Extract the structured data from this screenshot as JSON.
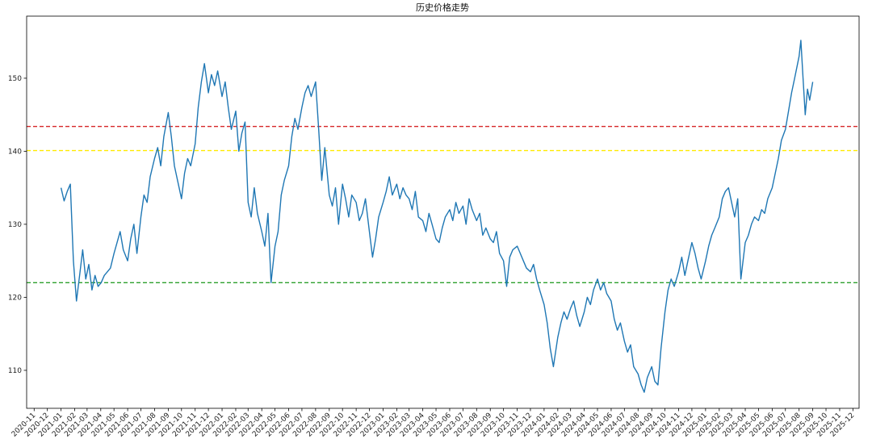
{
  "chart_data": {
    "type": "line",
    "title": "历史价格走势",
    "xlabel": "",
    "ylabel": "",
    "xlim": [
      "2020-10-15",
      "2025-12-15"
    ],
    "ylim": [
      104.8,
      158.5
    ],
    "grid": false,
    "legend": "none",
    "y_ticks": [
      110,
      120,
      130,
      140,
      150
    ],
    "x_ticks": [
      "2020-11",
      "2020-12",
      "2021-01",
      "2021-02",
      "2021-03",
      "2021-04",
      "2021-05",
      "2021-06",
      "2021-07",
      "2021-08",
      "2021-09",
      "2021-10",
      "2021-11",
      "2021-12",
      "2022-01",
      "2022-02",
      "2022-03",
      "2022-04",
      "2022-05",
      "2022-06",
      "2022-07",
      "2022-08",
      "2022-09",
      "2022-10",
      "2022-11",
      "2022-12",
      "2023-01",
      "2023-02",
      "2023-03",
      "2023-04",
      "2023-05",
      "2023-06",
      "2023-07",
      "2023-08",
      "2023-09",
      "2023-10",
      "2023-11",
      "2023-12",
      "2024-01",
      "2024-02",
      "2024-03",
      "2024-04",
      "2024-05",
      "2024-06",
      "2024-07",
      "2024-08",
      "2024-09",
      "2024-10",
      "2024-11",
      "2024-12",
      "2025-01",
      "2025-02",
      "2025-03",
      "2025-04",
      "2025-05",
      "2025-06",
      "2025-07",
      "2025-08",
      "2025-09",
      "2025-10",
      "2025-11",
      "2025-12"
    ],
    "hlines": [
      {
        "y": 143.4,
        "color": "#d62728",
        "style": "dashed"
      },
      {
        "y": 140.1,
        "color": "#ffea00",
        "style": "dashed"
      },
      {
        "y": 122.0,
        "color": "#2ca02c",
        "style": "dashed"
      }
    ],
    "series": [
      {
        "color": "#1f77b4",
        "points": [
          [
            "2021-01-01",
            135.0
          ],
          [
            "2021-01-08",
            133.2
          ],
          [
            "2021-01-15",
            134.5
          ],
          [
            "2021-01-22",
            135.5
          ],
          [
            "2021-01-29",
            125.0
          ],
          [
            "2021-02-05",
            119.5
          ],
          [
            "2021-02-12",
            123.0
          ],
          [
            "2021-02-19",
            126.5
          ],
          [
            "2021-02-26",
            122.5
          ],
          [
            "2021-03-05",
            124.5
          ],
          [
            "2021-03-12",
            121.0
          ],
          [
            "2021-03-19",
            123.0
          ],
          [
            "2021-03-26",
            121.5
          ],
          [
            "2021-04-02",
            122.0
          ],
          [
            "2021-04-09",
            123.0
          ],
          [
            "2021-04-16",
            123.5
          ],
          [
            "2021-04-23",
            124.0
          ],
          [
            "2021-05-01",
            126.0
          ],
          [
            "2021-05-08",
            127.5
          ],
          [
            "2021-05-15",
            129.0
          ],
          [
            "2021-05-22",
            126.5
          ],
          [
            "2021-06-01",
            125.0
          ],
          [
            "2021-06-08",
            128.0
          ],
          [
            "2021-06-15",
            130.0
          ],
          [
            "2021-06-22",
            126.0
          ],
          [
            "2021-07-01",
            131.0
          ],
          [
            "2021-07-08",
            134.0
          ],
          [
            "2021-07-15",
            133.0
          ],
          [
            "2021-07-22",
            136.5
          ],
          [
            "2021-08-01",
            139.0
          ],
          [
            "2021-08-08",
            140.5
          ],
          [
            "2021-08-15",
            138.0
          ],
          [
            "2021-08-22",
            142.0
          ],
          [
            "2021-09-01",
            145.3
          ],
          [
            "2021-09-08",
            142.0
          ],
          [
            "2021-09-15",
            138.0
          ],
          [
            "2021-09-22",
            136.0
          ],
          [
            "2021-10-01",
            133.5
          ],
          [
            "2021-10-08",
            137.0
          ],
          [
            "2021-10-15",
            139.0
          ],
          [
            "2021-10-22",
            138.0
          ],
          [
            "2021-11-01",
            141.0
          ],
          [
            "2021-11-08",
            146.0
          ],
          [
            "2021-11-15",
            149.5
          ],
          [
            "2021-11-22",
            152.0
          ],
          [
            "2021-12-01",
            148.0
          ],
          [
            "2021-12-08",
            150.5
          ],
          [
            "2021-12-15",
            149.0
          ],
          [
            "2021-12-22",
            151.0
          ],
          [
            "2022-01-01",
            147.5
          ],
          [
            "2022-01-08",
            149.5
          ],
          [
            "2022-01-15",
            146.0
          ],
          [
            "2022-01-22",
            143.0
          ],
          [
            "2022-02-01",
            145.5
          ],
          [
            "2022-02-08",
            140.0
          ],
          [
            "2022-02-15",
            142.5
          ],
          [
            "2022-02-22",
            144.0
          ],
          [
            "2022-03-01",
            133.0
          ],
          [
            "2022-03-08",
            131.0
          ],
          [
            "2022-03-15",
            135.0
          ],
          [
            "2022-03-22",
            131.5
          ],
          [
            "2022-04-01",
            129.0
          ],
          [
            "2022-04-08",
            127.0
          ],
          [
            "2022-04-15",
            131.5
          ],
          [
            "2022-04-22",
            122.0
          ],
          [
            "2022-05-01",
            127.0
          ],
          [
            "2022-05-08",
            129.0
          ],
          [
            "2022-05-15",
            134.0
          ],
          [
            "2022-05-22",
            136.0
          ],
          [
            "2022-06-01",
            138.0
          ],
          [
            "2022-06-08",
            142.0
          ],
          [
            "2022-06-15",
            144.5
          ],
          [
            "2022-06-22",
            143.0
          ],
          [
            "2022-07-01",
            146.0
          ],
          [
            "2022-07-08",
            148.0
          ],
          [
            "2022-07-15",
            149.0
          ],
          [
            "2022-07-22",
            147.5
          ],
          [
            "2022-08-01",
            149.5
          ],
          [
            "2022-08-08",
            143.0
          ],
          [
            "2022-08-15",
            136.0
          ],
          [
            "2022-08-22",
            140.5
          ],
          [
            "2022-09-01",
            134.0
          ],
          [
            "2022-09-08",
            132.5
          ],
          [
            "2022-09-15",
            135.0
          ],
          [
            "2022-09-22",
            130.0
          ],
          [
            "2022-10-01",
            135.5
          ],
          [
            "2022-10-08",
            133.5
          ],
          [
            "2022-10-15",
            131.0
          ],
          [
            "2022-10-22",
            134.0
          ],
          [
            "2022-11-01",
            133.0
          ],
          [
            "2022-11-08",
            130.5
          ],
          [
            "2022-11-15",
            131.5
          ],
          [
            "2022-11-22",
            133.5
          ],
          [
            "2022-12-01",
            129.0
          ],
          [
            "2022-12-08",
            125.5
          ],
          [
            "2022-12-15",
            128.0
          ],
          [
            "2022-12-22",
            131.0
          ],
          [
            "2023-01-01",
            133.0
          ],
          [
            "2023-01-08",
            134.5
          ],
          [
            "2023-01-15",
            136.5
          ],
          [
            "2023-01-22",
            134.0
          ],
          [
            "2023-02-01",
            135.5
          ],
          [
            "2023-02-08",
            133.5
          ],
          [
            "2023-02-15",
            135.0
          ],
          [
            "2023-02-22",
            134.0
          ],
          [
            "2023-03-01",
            133.5
          ],
          [
            "2023-03-08",
            132.0
          ],
          [
            "2023-03-15",
            134.5
          ],
          [
            "2023-03-22",
            131.0
          ],
          [
            "2023-04-01",
            130.5
          ],
          [
            "2023-04-08",
            129.0
          ],
          [
            "2023-04-15",
            131.5
          ],
          [
            "2023-04-22",
            130.0
          ],
          [
            "2023-05-01",
            128.0
          ],
          [
            "2023-05-08",
            127.5
          ],
          [
            "2023-05-15",
            129.5
          ],
          [
            "2023-05-22",
            131.0
          ],
          [
            "2023-06-01",
            132.0
          ],
          [
            "2023-06-08",
            130.5
          ],
          [
            "2023-06-15",
            133.0
          ],
          [
            "2023-06-22",
            131.5
          ],
          [
            "2023-07-01",
            132.5
          ],
          [
            "2023-07-08",
            130.0
          ],
          [
            "2023-07-15",
            133.5
          ],
          [
            "2023-07-22",
            132.0
          ],
          [
            "2023-08-01",
            130.5
          ],
          [
            "2023-08-08",
            131.5
          ],
          [
            "2023-08-15",
            128.5
          ],
          [
            "2023-08-22",
            129.5
          ],
          [
            "2023-09-01",
            128.0
          ],
          [
            "2023-09-08",
            127.5
          ],
          [
            "2023-09-15",
            129.0
          ],
          [
            "2023-09-22",
            126.0
          ],
          [
            "2023-10-01",
            125.0
          ],
          [
            "2023-10-08",
            121.5
          ],
          [
            "2023-10-15",
            125.5
          ],
          [
            "2023-10-22",
            126.5
          ],
          [
            "2023-11-01",
            127.0
          ],
          [
            "2023-11-08",
            126.0
          ],
          [
            "2023-11-15",
            125.0
          ],
          [
            "2023-11-22",
            124.0
          ],
          [
            "2023-12-01",
            123.5
          ],
          [
            "2023-12-08",
            124.5
          ],
          [
            "2023-12-15",
            122.5
          ],
          [
            "2023-12-22",
            121.0
          ],
          [
            "2024-01-01",
            119.0
          ],
          [
            "2024-01-08",
            116.5
          ],
          [
            "2024-01-15",
            113.0
          ],
          [
            "2024-01-22",
            110.5
          ],
          [
            "2024-02-01",
            114.5
          ],
          [
            "2024-02-08",
            116.5
          ],
          [
            "2024-02-15",
            118.0
          ],
          [
            "2024-02-22",
            117.0
          ],
          [
            "2024-03-01",
            118.5
          ],
          [
            "2024-03-08",
            119.5
          ],
          [
            "2024-03-15",
            117.5
          ],
          [
            "2024-03-22",
            116.0
          ],
          [
            "2024-04-01",
            118.0
          ],
          [
            "2024-04-08",
            120.0
          ],
          [
            "2024-04-15",
            119.0
          ],
          [
            "2024-04-22",
            121.0
          ],
          [
            "2024-05-01",
            122.5
          ],
          [
            "2024-05-08",
            121.0
          ],
          [
            "2024-05-15",
            122.0
          ],
          [
            "2024-05-22",
            120.5
          ],
          [
            "2024-06-01",
            119.5
          ],
          [
            "2024-06-08",
            117.0
          ],
          [
            "2024-06-15",
            115.5
          ],
          [
            "2024-06-22",
            116.5
          ],
          [
            "2024-07-01",
            114.0
          ],
          [
            "2024-07-08",
            112.5
          ],
          [
            "2024-07-15",
            113.5
          ],
          [
            "2024-07-22",
            110.5
          ],
          [
            "2024-08-01",
            109.5
          ],
          [
            "2024-08-08",
            108.0
          ],
          [
            "2024-08-15",
            107.0
          ],
          [
            "2024-08-22",
            109.0
          ],
          [
            "2024-09-01",
            110.5
          ],
          [
            "2024-09-08",
            108.5
          ],
          [
            "2024-09-15",
            108.0
          ],
          [
            "2024-09-22",
            113.0
          ],
          [
            "2024-10-01",
            118.0
          ],
          [
            "2024-10-08",
            121.0
          ],
          [
            "2024-10-15",
            122.5
          ],
          [
            "2024-10-22",
            121.5
          ],
          [
            "2024-11-01",
            123.5
          ],
          [
            "2024-11-08",
            125.5
          ],
          [
            "2024-11-15",
            123.0
          ],
          [
            "2024-11-22",
            125.0
          ],
          [
            "2024-12-01",
            127.5
          ],
          [
            "2024-12-08",
            126.0
          ],
          [
            "2024-12-15",
            124.0
          ],
          [
            "2024-12-22",
            122.5
          ],
          [
            "2025-01-01",
            125.0
          ],
          [
            "2025-01-08",
            127.0
          ],
          [
            "2025-01-15",
            128.5
          ],
          [
            "2025-01-22",
            129.5
          ],
          [
            "2025-02-01",
            131.0
          ],
          [
            "2025-02-08",
            133.5
          ],
          [
            "2025-02-15",
            134.5
          ],
          [
            "2025-02-22",
            135.0
          ],
          [
            "2025-03-01",
            133.0
          ],
          [
            "2025-03-08",
            131.0
          ],
          [
            "2025-03-15",
            133.5
          ],
          [
            "2025-03-22",
            122.5
          ],
          [
            "2025-04-01",
            127.5
          ],
          [
            "2025-04-08",
            128.5
          ],
          [
            "2025-04-15",
            130.0
          ],
          [
            "2025-04-22",
            131.0
          ],
          [
            "2025-05-01",
            130.5
          ],
          [
            "2025-05-08",
            132.0
          ],
          [
            "2025-05-15",
            131.5
          ],
          [
            "2025-05-22",
            133.5
          ],
          [
            "2025-06-01",
            135.0
          ],
          [
            "2025-06-08",
            137.0
          ],
          [
            "2025-06-15",
            139.0
          ],
          [
            "2025-06-22",
            141.5
          ],
          [
            "2025-07-01",
            143.0
          ],
          [
            "2025-07-08",
            145.5
          ],
          [
            "2025-07-15",
            148.0
          ],
          [
            "2025-07-22",
            150.0
          ],
          [
            "2025-08-01",
            153.0
          ],
          [
            "2025-08-05",
            155.2
          ],
          [
            "2025-08-10",
            150.0
          ],
          [
            "2025-08-15",
            145.0
          ],
          [
            "2025-08-20",
            148.5
          ],
          [
            "2025-08-25",
            147.0
          ],
          [
            "2025-09-01",
            149.5
          ]
        ]
      }
    ]
  }
}
